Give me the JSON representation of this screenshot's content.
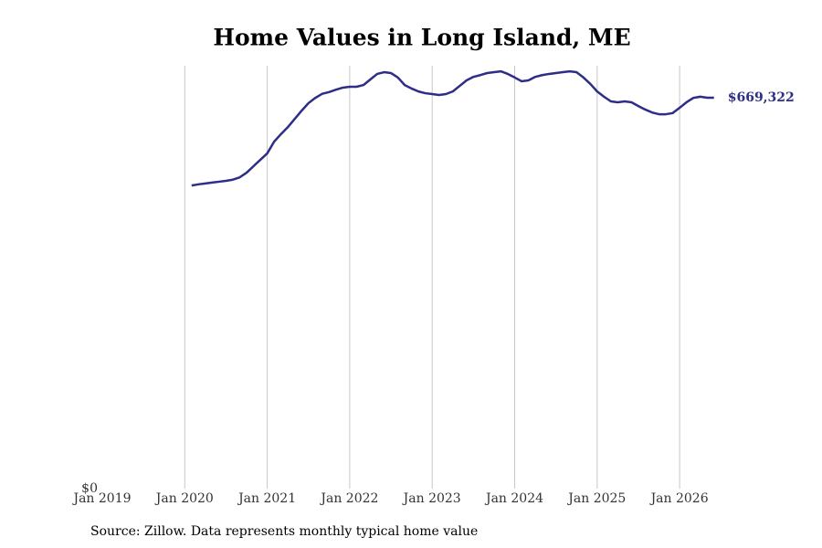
{
  "chart_data": {
    "type": "line",
    "title": "Home Values in Long Island, ME",
    "source": "Source: Zillow. Data represents monthly typical home value",
    "color": "#2e2d88",
    "x": [
      "2020-02",
      "2020-03",
      "2020-04",
      "2020-05",
      "2020-06",
      "2020-07",
      "2020-08",
      "2020-09",
      "2020-10",
      "2020-11",
      "2020-12",
      "2021-01",
      "2021-02",
      "2021-03",
      "2021-04",
      "2021-05",
      "2021-06",
      "2021-07",
      "2021-08",
      "2021-09",
      "2021-10",
      "2021-11",
      "2021-12",
      "2022-01",
      "2022-02",
      "2022-03",
      "2022-04",
      "2022-05",
      "2022-06",
      "2022-07",
      "2022-08",
      "2022-09",
      "2022-10",
      "2022-11",
      "2022-12",
      "2023-01",
      "2023-02",
      "2023-03",
      "2023-04",
      "2023-05",
      "2023-06",
      "2023-07",
      "2023-08",
      "2023-09",
      "2023-10",
      "2023-11",
      "2023-12",
      "2024-01",
      "2024-02",
      "2024-03",
      "2024-04",
      "2024-05",
      "2024-06",
      "2024-07",
      "2024-08",
      "2024-09",
      "2024-10",
      "2024-11",
      "2024-12",
      "2025-01",
      "2025-02",
      "2025-03",
      "2025-04",
      "2025-05",
      "2025-06",
      "2025-07",
      "2025-08",
      "2025-09",
      "2025-10",
      "2025-11",
      "2025-12",
      "2026-01",
      "2026-02",
      "2026-03",
      "2026-04",
      "2026-05",
      "2026-06"
    ],
    "values": [
      519000,
      521000,
      522500,
      524000,
      525500,
      527000,
      529000,
      533000,
      541000,
      552000,
      563000,
      574000,
      594000,
      607000,
      619000,
      633000,
      647000,
      660000,
      669000,
      676000,
      679000,
      683000,
      686500,
      688000,
      688000,
      691000,
      700500,
      710000,
      713000,
      711500,
      704000,
      691000,
      685000,
      680000,
      677000,
      675500,
      674000,
      675500,
      680000,
      689500,
      699000,
      705000,
      708000,
      711500,
      713000,
      714500,
      710000,
      704000,
      697500,
      699000,
      705000,
      708000,
      710000,
      711500,
      713000,
      714500,
      713000,
      704000,
      693000,
      680000,
      671000,
      663000,
      661500,
      663000,
      661500,
      655000,
      649000,
      644000,
      641000,
      641000,
      643000,
      652000,
      661500,
      669000,
      671000,
      669300,
      669322
    ],
    "last_value_label": "$669,322",
    "xlim": [
      "2019-01",
      "2026-08"
    ],
    "xticks": [
      {
        "value": "2019-01",
        "label": "Jan 2019"
      },
      {
        "value": "2020-01",
        "label": "Jan 2020"
      },
      {
        "value": "2021-01",
        "label": "Jan 2021"
      },
      {
        "value": "2022-01",
        "label": "Jan 2022"
      },
      {
        "value": "2023-01",
        "label": "Jan 2023"
      },
      {
        "value": "2024-01",
        "label": "Jan 2024"
      },
      {
        "value": "2025-01",
        "label": "Jan 2025"
      },
      {
        "value": "2026-01",
        "label": "Jan 2026"
      }
    ],
    "ylim": [
      0,
      724000
    ],
    "yticks": [
      {
        "value": 0,
        "label": "$0"
      }
    ],
    "grid": "x"
  }
}
